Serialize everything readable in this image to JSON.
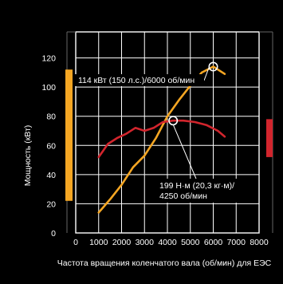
{
  "chart_data": {
    "type": "line",
    "title": "",
    "xlabel": "Частота вращения коленчатого вала (об/мин) для ЕЭС",
    "ylabel": "Мощность (кВт)",
    "xlim": [
      0,
      8000
    ],
    "ylim": [
      0,
      140
    ],
    "x_ticks": [
      "0",
      "1000",
      "2000",
      "3000",
      "4000",
      "5000",
      "6000",
      "7000",
      "8000"
    ],
    "y_ticks": [
      "0",
      "20",
      "40",
      "60",
      "80",
      "100",
      "120"
    ],
    "grid": true,
    "series": [
      {
        "color": "#f5a623",
        "x": [
          1000,
          1500,
          2000,
          2500,
          3000,
          3500,
          4000,
          4500,
          5000,
          5500,
          6000,
          6500
        ],
        "y": [
          14,
          23,
          33,
          45,
          53,
          65,
          80,
          91,
          101,
          110,
          114,
          109
        ]
      },
      {
        "color": "#d2252d",
        "x": [
          1000,
          1400,
          1800,
          2200,
          2600,
          3000,
          3400,
          3800,
          4250,
          4700,
          5200,
          5700,
          6200,
          6500
        ],
        "y": [
          52,
          61,
          65,
          68,
          72,
          70,
          72,
          76,
          77,
          77,
          76,
          74,
          70,
          66
        ]
      }
    ],
    "annotations": [
      {
        "text": "114 кВт (150 л.с.)/6000 об/мин",
        "x": 6000,
        "y": 114
      },
      {
        "text_lines": [
          "199 Н·м (20,3 кг·м)/",
          "4250 об/мин"
        ],
        "x": 4250,
        "y": 77
      }
    ],
    "left_scale_bar": {
      "color": "#f5a623",
      "range": [
        22,
        112
      ]
    },
    "right_scale_bar": {
      "color": "#d2252d",
      "range": [
        52,
        78
      ]
    }
  }
}
